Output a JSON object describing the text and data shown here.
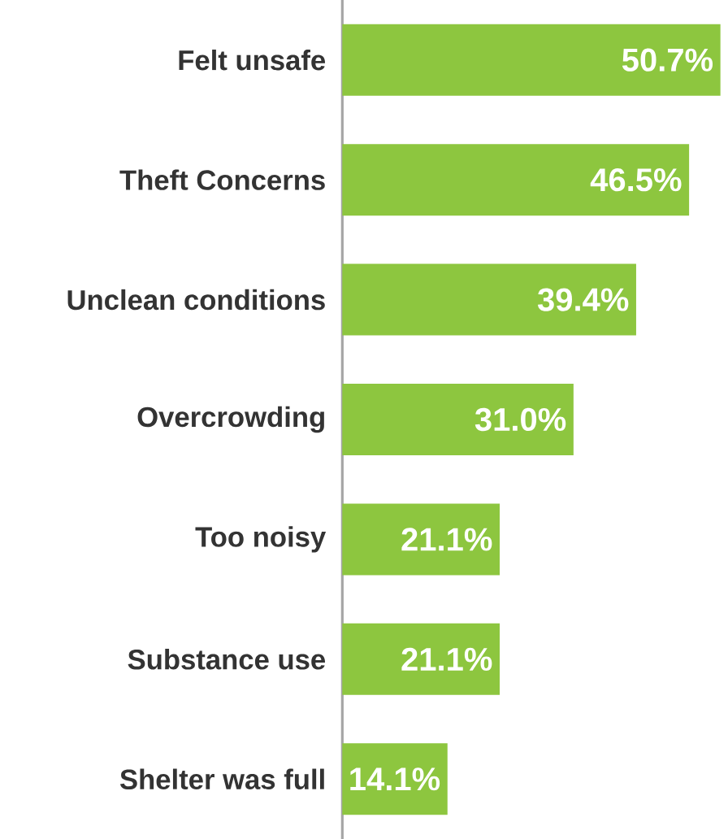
{
  "chart_data": {
    "type": "bar",
    "orientation": "horizontal",
    "categories": [
      "Felt unsafe",
      "Theft Concerns",
      "Unclean conditions",
      "Overcrowding",
      "Too noisy",
      "Substance use",
      "Shelter was full"
    ],
    "values": [
      50.7,
      46.5,
      39.4,
      31.0,
      21.1,
      21.1,
      14.1
    ],
    "value_labels": [
      "50.7%",
      "46.5%",
      "39.4%",
      "31.0%",
      "21.1%",
      "21.1%",
      "14.1%"
    ],
    "color": "#8dc63f"
  }
}
